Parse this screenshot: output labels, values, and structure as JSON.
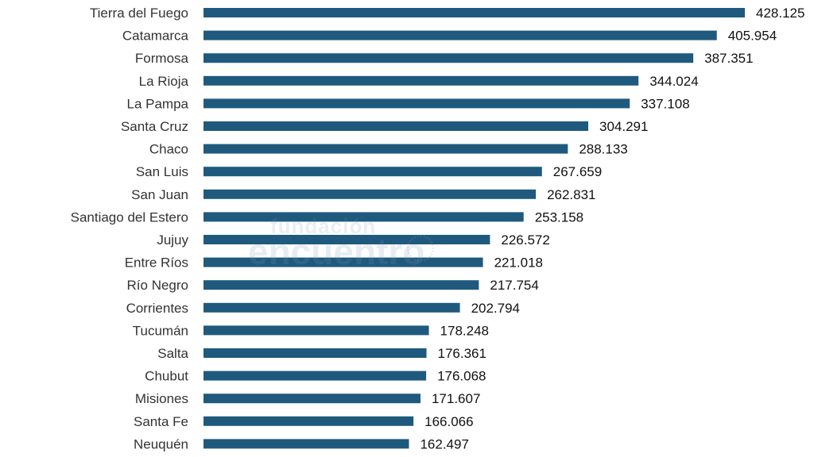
{
  "chart_data": {
    "type": "bar",
    "orientation": "horizontal",
    "categories": [
      "Tierra del Fuego",
      "Catamarca",
      "Formosa",
      "La Rioja",
      "La Pampa",
      "Santa Cruz",
      "Chaco",
      "San Luis",
      "San Juan",
      "Santiago del Estero",
      "Jujuy",
      "Entre Ríos",
      "Río Negro",
      "Corrientes",
      "Tucumán",
      "Salta",
      "Chubut",
      "Misiones",
      "Santa Fe",
      "Neuquén"
    ],
    "values": [
      428.125,
      405.954,
      387.351,
      344.024,
      337.108,
      304.291,
      288.133,
      267.659,
      262.831,
      253.158,
      226.572,
      221.018,
      217.754,
      202.794,
      178.248,
      176.361,
      176.068,
      171.607,
      166.066,
      162.497
    ],
    "value_labels": [
      "428.125",
      "405.954",
      "387.351",
      "344.024",
      "337.108",
      "304.291",
      "288.133",
      "267.659",
      "262.831",
      "253.158",
      "226.572",
      "221.018",
      "217.754",
      "202.794",
      "178.248",
      "176.361",
      "176.068",
      "171.607",
      "166.066",
      "162.497"
    ],
    "xlim": [
      0,
      428.125
    ],
    "bar_color": "#1f5a7e",
    "grid": false,
    "legend": "none"
  },
  "watermark": {
    "line1": "fundación",
    "line2": "encuentro"
  }
}
